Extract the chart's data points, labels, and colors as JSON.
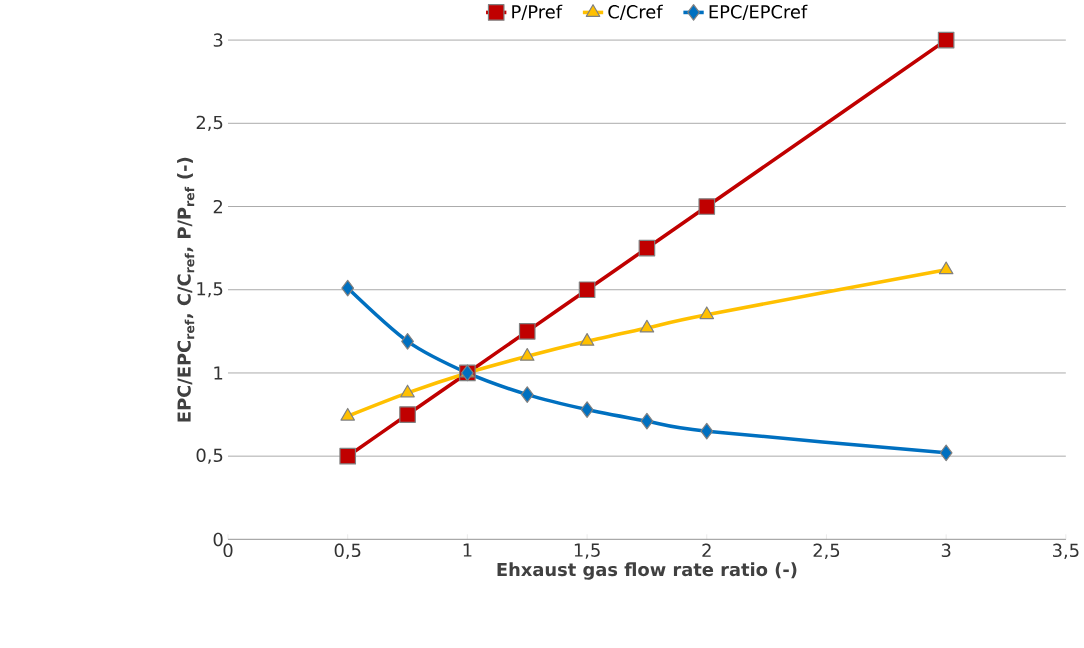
{
  "chart_data": {
    "type": "line",
    "xlabel": "Ehxaust gas flow rate ratio (-)",
    "ylabel": "EPC/EPC$_{ref}$,  C/C$_{ref}$,  P/P$_{ref}$   (-)",
    "x": [
      0.5,
      0.75,
      1,
      1.25,
      1.5,
      1.75,
      2,
      3
    ],
    "series": [
      {
        "name": "P/Pref",
        "color": "#c00000",
        "marker": "square",
        "values": [
          0.5,
          0.75,
          1,
          1.25,
          1.5,
          1.75,
          2,
          3
        ]
      },
      {
        "name": "C/Cref",
        "color": "#ffc000",
        "marker": "triangle",
        "values": [
          0.74,
          0.88,
          1.0,
          1.1,
          1.19,
          1.27,
          1.35,
          1.62
        ]
      },
      {
        "name": "EPC/EPCref",
        "color": "#0070c0",
        "marker": "diamond",
        "values": [
          1.51,
          1.19,
          1.0,
          0.87,
          0.78,
          0.71,
          0.65,
          0.52
        ]
      }
    ],
    "xlim": [
      0,
      3.5
    ],
    "ylim": [
      0,
      3
    ],
    "xticks": [
      0,
      {
        "value": 0.5,
        "label": "0,5"
      },
      1,
      {
        "value": 1.5,
        "label": "1,5"
      },
      2,
      {
        "value": 2.5,
        "label": "2,5"
      },
      3,
      {
        "value": 3.5,
        "label": "3,5"
      }
    ],
    "yticks": [
      0,
      {
        "value": 0.5,
        "label": "0,5"
      },
      1,
      {
        "value": 1.5,
        "label": "1,5"
      },
      2,
      {
        "value": 2.5,
        "label": "2,5"
      },
      3
    ],
    "grid": "y",
    "legend": "top",
    "line_style": "solid"
  }
}
